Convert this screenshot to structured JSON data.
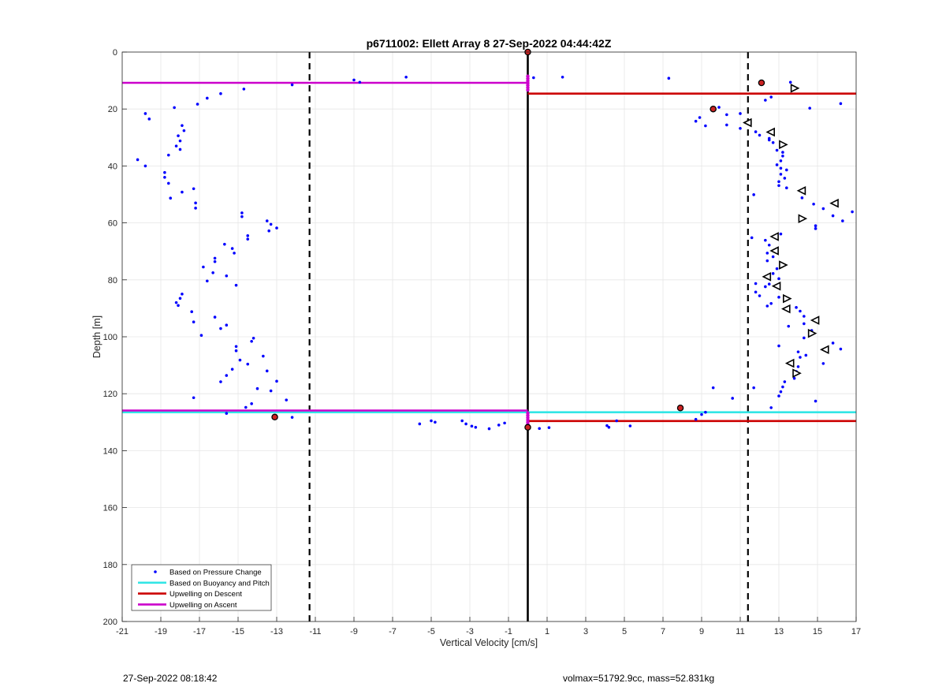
{
  "chart_data": {
    "type": "scatter",
    "title": "p6711002: Ellett Array 8 27-Sep-2022 04:44:42Z",
    "xlabel": "Vertical Velocity [cm/s]",
    "ylabel": "Depth [m]",
    "xlim": [
      -21,
      17
    ],
    "ylim": [
      0,
      200
    ],
    "y_reversed": true,
    "grid": true,
    "xticks": [
      -21,
      -19,
      -17,
      -15,
      -13,
      -11,
      -9,
      -7,
      -5,
      -3,
      -1,
      1,
      3,
      5,
      7,
      9,
      11,
      13,
      15,
      17
    ],
    "yticks": [
      0,
      20,
      40,
      60,
      80,
      100,
      120,
      140,
      160,
      180,
      200
    ],
    "legend_position": "bottom-left",
    "legend": [
      {
        "label": "Based on Pressure Change",
        "color": "#0000ff",
        "kind": "marker"
      },
      {
        "label": "Based on Buoyancy and Pitch",
        "color": "#33e6e6",
        "kind": "line"
      },
      {
        "label": "Upwelling on Descent",
        "color": "#cc0000",
        "kind": "line"
      },
      {
        "label": "Upwelling on Ascent",
        "color": "#cc00cc",
        "kind": "line"
      }
    ],
    "reference_lines": {
      "solid_vertical_x": 0,
      "dashed_vertical_x": [
        -11.3,
        11.4
      ]
    },
    "threshold_lines": [
      {
        "series": "Upwelling on Ascent",
        "depth": 10.8,
        "x_from": -21,
        "x_to": 0,
        "color": "#cc00cc"
      },
      {
        "series": "Upwelling on Descent",
        "depth": 14.6,
        "x_from": 0,
        "x_to": 17,
        "color": "#cc0000"
      },
      {
        "series": "Based on Buoyancy and Pitch",
        "depth": 126.5,
        "x_from": -21,
        "x_to": 17,
        "color": "#33e6e6"
      },
      {
        "series": "Upwelling on Ascent",
        "depth": 125.9,
        "x_from": -21,
        "x_to": 0,
        "color": "#cc00cc"
      },
      {
        "series": "Upwelling on Descent",
        "depth": 129.6,
        "x_from": 0,
        "x_to": 17,
        "color": "#cc0000"
      }
    ],
    "pressure_change_points": [
      [
        -12.2,
        11.5
      ],
      [
        -9.0,
        9.8
      ],
      [
        -8.7,
        10.6
      ],
      [
        -6.3,
        8.8
      ],
      [
        0.3,
        9.0
      ],
      [
        1.8,
        8.8
      ],
      [
        7.3,
        9.2
      ],
      [
        -14.7,
        13.0
      ],
      [
        -15.9,
        14.6
      ],
      [
        -16.6,
        16.2
      ],
      [
        -17.1,
        18.3
      ],
      [
        -18.3,
        19.5
      ],
      [
        -19.8,
        21.6
      ],
      [
        -19.6,
        23.5
      ],
      [
        -17.9,
        25.8
      ],
      [
        -17.8,
        27.6
      ],
      [
        -18.1,
        29.4
      ],
      [
        -18.0,
        31.2
      ],
      [
        -18.2,
        33.0
      ],
      [
        -18.0,
        34.2
      ],
      [
        -18.6,
        36.2
      ],
      [
        -20.2,
        37.8
      ],
      [
        -19.8,
        40.0
      ],
      [
        -18.8,
        42.3
      ],
      [
        -18.8,
        44.0
      ],
      [
        -18.6,
        46.1
      ],
      [
        -17.9,
        49.2
      ],
      [
        -17.3,
        48.0
      ],
      [
        -18.5,
        51.3
      ],
      [
        -17.2,
        53.0
      ],
      [
        -17.2,
        54.8
      ],
      [
        -14.8,
        56.5
      ],
      [
        -14.8,
        57.8
      ],
      [
        -13.5,
        59.3
      ],
      [
        -13.3,
        60.5
      ],
      [
        -13.0,
        61.8
      ],
      [
        -13.4,
        62.8
      ],
      [
        -14.5,
        64.5
      ],
      [
        -14.5,
        65.7
      ],
      [
        -15.7,
        67.5
      ],
      [
        -15.3,
        69.0
      ],
      [
        -15.2,
        70.6
      ],
      [
        -16.2,
        72.4
      ],
      [
        -16.2,
        73.6
      ],
      [
        -16.8,
        75.5
      ],
      [
        -16.3,
        77.5
      ],
      [
        -15.6,
        78.6
      ],
      [
        -16.6,
        80.4
      ],
      [
        -15.1,
        81.9
      ],
      [
        -17.9,
        85.0
      ],
      [
        -18.0,
        86.5
      ],
      [
        -18.2,
        88.0
      ],
      [
        -18.1,
        89.0
      ],
      [
        -17.4,
        91.2
      ],
      [
        -16.2,
        93.1
      ],
      [
        -17.3,
        94.8
      ],
      [
        -15.6,
        95.9
      ],
      [
        -15.9,
        97.1
      ],
      [
        -16.9,
        99.5
      ],
      [
        -14.2,
        100.5
      ],
      [
        -14.3,
        101.6
      ],
      [
        -15.1,
        103.4
      ],
      [
        -15.1,
        104.9
      ],
      [
        -13.7,
        106.8
      ],
      [
        -14.9,
        108.2
      ],
      [
        -14.5,
        109.6
      ],
      [
        -15.3,
        111.4
      ],
      [
        -13.5,
        112.0
      ],
      [
        -15.6,
        113.6
      ],
      [
        -15.9,
        115.8
      ],
      [
        -13.0,
        115.6
      ],
      [
        -14.0,
        118.2
      ],
      [
        -13.3,
        119.0
      ],
      [
        -17.3,
        121.4
      ],
      [
        -12.5,
        122.2
      ],
      [
        -14.3,
        123.5
      ],
      [
        -14.6,
        124.8
      ],
      [
        -15.6,
        126.9
      ],
      [
        -12.2,
        128.3
      ],
      [
        -5.6,
        130.6
      ],
      [
        -5.0,
        129.5
      ],
      [
        -4.8,
        130.0
      ],
      [
        -3.4,
        129.5
      ],
      [
        -3.2,
        130.6
      ],
      [
        -2.9,
        131.4
      ],
      [
        -2.7,
        131.8
      ],
      [
        -2.0,
        132.3
      ],
      [
        -1.5,
        131.0
      ],
      [
        -1.2,
        130.3
      ],
      [
        0.6,
        132.2
      ],
      [
        1.1,
        131.9
      ],
      [
        4.1,
        131.2
      ],
      [
        4.2,
        131.8
      ],
      [
        4.6,
        129.5
      ],
      [
        5.3,
        131.3
      ],
      [
        8.7,
        129.0
      ],
      [
        9.0,
        127.3
      ],
      [
        9.2,
        126.5
      ],
      [
        9.6,
        117.9
      ],
      [
        10.6,
        121.6
      ],
      [
        11.7,
        117.9
      ],
      [
        12.6,
        124.9
      ],
      [
        8.7,
        24.3
      ],
      [
        8.9,
        23.0
      ],
      [
        9.2,
        25.9
      ],
      [
        9.9,
        19.4
      ],
      [
        10.3,
        22.0
      ],
      [
        10.3,
        25.6
      ],
      [
        11.0,
        21.6
      ],
      [
        11.0,
        26.8
      ],
      [
        11.8,
        28.0
      ],
      [
        12.0,
        29.2
      ],
      [
        12.5,
        30.3
      ],
      [
        12.5,
        30.9
      ],
      [
        12.7,
        31.8
      ],
      [
        12.3,
        16.9
      ],
      [
        12.6,
        15.8
      ],
      [
        13.6,
        10.6
      ],
      [
        14.6,
        19.7
      ],
      [
        16.2,
        18.1
      ],
      [
        12.9,
        34.5
      ],
      [
        13.2,
        35.2
      ],
      [
        13.2,
        36.5
      ],
      [
        13.1,
        38.2
      ],
      [
        12.9,
        39.6
      ],
      [
        13.1,
        40.8
      ],
      [
        13.4,
        41.4
      ],
      [
        13.1,
        42.9
      ],
      [
        13.3,
        44.3
      ],
      [
        13.0,
        45.5
      ],
      [
        13.0,
        46.9
      ],
      [
        13.4,
        47.7
      ],
      [
        11.7,
        50.1
      ],
      [
        14.8,
        53.4
      ],
      [
        15.3,
        55.0
      ],
      [
        14.2,
        51.2
      ],
      [
        15.8,
        57.5
      ],
      [
        16.3,
        59.3
      ],
      [
        16.8,
        56.1
      ],
      [
        14.9,
        61.0
      ],
      [
        14.9,
        62.0
      ],
      [
        13.1,
        63.9
      ],
      [
        11.6,
        65.2
      ],
      [
        12.3,
        66.1
      ],
      [
        12.5,
        67.8
      ],
      [
        12.4,
        70.6
      ],
      [
        12.7,
        71.9
      ],
      [
        12.4,
        73.3
      ],
      [
        13.2,
        74.6
      ],
      [
        12.9,
        76.1
      ],
      [
        12.7,
        77.8
      ],
      [
        13.0,
        79.6
      ],
      [
        11.8,
        81.3
      ],
      [
        12.5,
        81.5
      ],
      [
        12.3,
        82.4
      ],
      [
        11.8,
        84.3
      ],
      [
        12.0,
        85.6
      ],
      [
        13.0,
        86.1
      ],
      [
        12.6,
        88.3
      ],
      [
        12.4,
        89.2
      ],
      [
        13.9,
        89.7
      ],
      [
        14.1,
        91.0
      ],
      [
        14.3,
        92.8
      ],
      [
        14.3,
        95.4
      ],
      [
        13.5,
        96.3
      ],
      [
        14.7,
        97.8
      ],
      [
        14.3,
        100.4
      ],
      [
        15.8,
        102.2
      ],
      [
        13.0,
        103.2
      ],
      [
        16.2,
        104.3
      ],
      [
        14.0,
        105.3
      ],
      [
        14.1,
        107.2
      ],
      [
        14.4,
        106.5
      ],
      [
        15.3,
        109.4
      ],
      [
        14.0,
        110.5
      ],
      [
        13.9,
        112.2
      ],
      [
        13.8,
        114.6
      ],
      [
        13.3,
        115.8
      ],
      [
        13.2,
        117.6
      ],
      [
        13.1,
        119.3
      ],
      [
        13.0,
        120.8
      ],
      [
        14.9,
        122.6
      ]
    ],
    "open_triangle_points": [
      [
        13.8,
        12.7
      ],
      [
        11.4,
        24.8
      ],
      [
        12.6,
        28.1
      ],
      [
        13.2,
        32.5
      ],
      [
        14.2,
        48.7
      ],
      [
        15.9,
        53.1
      ],
      [
        14.2,
        58.5
      ],
      [
        12.8,
        64.8
      ],
      [
        12.8,
        69.8
      ],
      [
        13.2,
        74.8
      ],
      [
        12.4,
        78.9
      ],
      [
        12.9,
        82.2
      ],
      [
        13.4,
        86.6
      ],
      [
        13.4,
        90.2
      ],
      [
        14.9,
        94.2
      ],
      [
        14.7,
        98.8
      ],
      [
        15.4,
        104.5
      ],
      [
        13.6,
        109.3
      ],
      [
        13.9,
        112.8
      ]
    ],
    "red_dot_points": [
      [
        0.0,
        0.0
      ],
      [
        12.1,
        10.8
      ],
      [
        9.6,
        20.0
      ],
      [
        -13.1,
        128.2
      ],
      [
        7.9,
        125.0
      ],
      [
        0.0,
        131.8
      ]
    ],
    "magenta_column_points": [
      [
        0.0,
        8.5
      ],
      [
        0.0,
        9.3
      ],
      [
        0.0,
        10.1
      ],
      [
        0.0,
        10.9
      ],
      [
        0.0,
        11.7
      ],
      [
        0.0,
        12.5
      ],
      [
        0.0,
        13.3
      ],
      [
        0.0,
        126.8
      ],
      [
        0.0,
        127.6
      ],
      [
        0.0,
        128.4
      ],
      [
        0.0,
        129.2
      ],
      [
        0.0,
        130.0
      ],
      [
        0.0,
        130.8
      ],
      [
        0.0,
        131.4
      ]
    ]
  },
  "footer": {
    "timestamp": "27-Sep-2022 08:18:42",
    "info": "volmax=51792.9cc, mass=52.831kg"
  }
}
